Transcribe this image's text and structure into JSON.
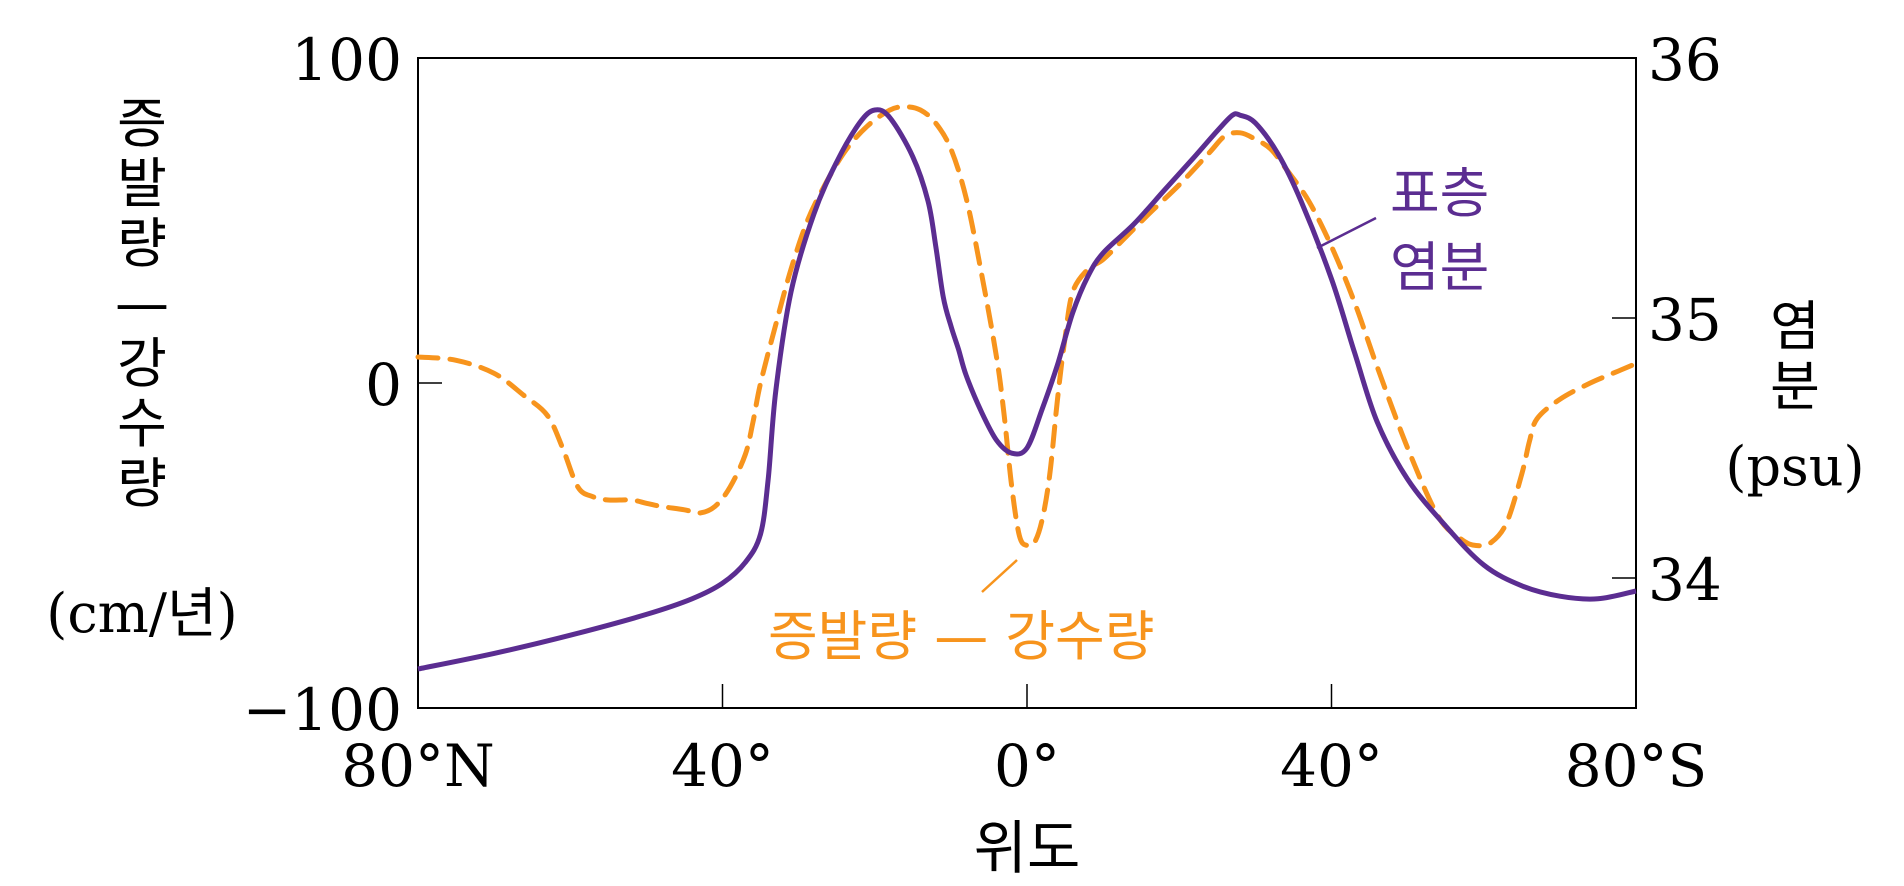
{
  "chart_data": {
    "type": "line",
    "x_axis": {
      "label": "위도",
      "range": [
        -80,
        80
      ],
      "ticks": [
        {
          "value": -80,
          "label": "80°N"
        },
        {
          "value": -40,
          "label": "40°"
        },
        {
          "value": 0,
          "label": "0°"
        },
        {
          "value": 40,
          "label": "40°"
        },
        {
          "value": 80,
          "label": "80°S"
        }
      ]
    },
    "y_left": {
      "label_lines": [
        "증",
        "발",
        "량",
        "—",
        "강",
        "수",
        "량"
      ],
      "unit": "(cm/년)",
      "range": [
        -100,
        100
      ],
      "ticks": [
        {
          "value": 100,
          "label": "100"
        },
        {
          "value": 0,
          "label": "0"
        },
        {
          "value": -100,
          "label": "−100"
        }
      ]
    },
    "y_right": {
      "label_lines": [
        "염",
        "분"
      ],
      "unit": "(psu)",
      "range": [
        33.5,
        36
      ],
      "ticks": [
        {
          "value": 36,
          "label": "36"
        },
        {
          "value": 35,
          "label": "35"
        },
        {
          "value": 34,
          "label": "34"
        }
      ]
    },
    "colors": {
      "salinity": "#5b2d91",
      "evap": "#f7941d",
      "axis": "#000000"
    },
    "series": [
      {
        "name": "표층 염분",
        "label_lines": [
          "표층",
          "염분"
        ],
        "axis": "right",
        "style": "solid",
        "x": [
          -80,
          -70,
          -60,
          -50,
          -44,
          -40,
          -37,
          -35,
          -34,
          -33,
          -31,
          -28,
          -25,
          -22,
          -20,
          -18,
          -15,
          -13,
          -12,
          -11,
          -10,
          -9,
          -8,
          -6,
          -4,
          -2,
          0,
          2,
          4,
          6,
          8,
          10,
          14,
          18,
          22,
          25,
          27,
          28,
          30,
          33,
          36,
          40,
          43,
          46,
          50,
          55,
          60,
          65,
          70,
          75,
          80
        ],
        "y": [
          33.65,
          33.71,
          33.78,
          33.86,
          33.92,
          33.98,
          34.06,
          34.17,
          34.38,
          34.72,
          35.1,
          35.4,
          35.6,
          35.75,
          35.8,
          35.77,
          35.62,
          35.45,
          35.28,
          35.08,
          34.97,
          34.88,
          34.78,
          34.64,
          34.53,
          34.48,
          34.5,
          34.65,
          34.82,
          35.02,
          35.16,
          35.25,
          35.36,
          35.49,
          35.62,
          35.72,
          35.78,
          35.78,
          35.75,
          35.63,
          35.45,
          35.15,
          34.87,
          34.6,
          34.38,
          34.2,
          34.05,
          33.97,
          33.93,
          33.92,
          33.95
        ]
      },
      {
        "name": "증발량 — 강수량",
        "label": "증발량 — 강수량",
        "axis": "left",
        "style": "dashed",
        "x": [
          -80,
          -75,
          -70,
          -66,
          -63,
          -61,
          -59,
          -57,
          -55,
          -52,
          -50,
          -48,
          -45,
          -43,
          -41,
          -39,
          -37,
          -36,
          -35,
          -33,
          -31,
          -29,
          -27,
          -24,
          -21,
          -18,
          -16,
          -14,
          -12,
          -10,
          -8,
          -6,
          -4,
          -3,
          -2,
          -1,
          0,
          1,
          2,
          3,
          4,
          5,
          6,
          8,
          10,
          13,
          16,
          20,
          24,
          26,
          28,
          30,
          32,
          34,
          37,
          40,
          43,
          46,
          50,
          54,
          57,
          59,
          61,
          63,
          65,
          66,
          67,
          70,
          74,
          78,
          80
        ],
        "y": [
          8,
          7,
          3,
          -4,
          -10,
          -20,
          -32,
          -35,
          -36,
          -36,
          -37,
          -38,
          -39,
          -40,
          -38,
          -32,
          -22,
          -12,
          0,
          18,
          35,
          49,
          59,
          71,
          79,
          84,
          85,
          84,
          80,
          72,
          57,
          34,
          8,
          -10,
          -32,
          -47,
          -50,
          -49,
          -42,
          -28,
          -5,
          14,
          28,
          35,
          38,
          45,
          52,
          61,
          71,
          76,
          77,
          75,
          72,
          66,
          56,
          42,
          25,
          5,
          -20,
          -41,
          -48,
          -50,
          -49,
          -43,
          -28,
          -18,
          -11,
          -5,
          0,
          4,
          6
        ]
      }
    ]
  }
}
